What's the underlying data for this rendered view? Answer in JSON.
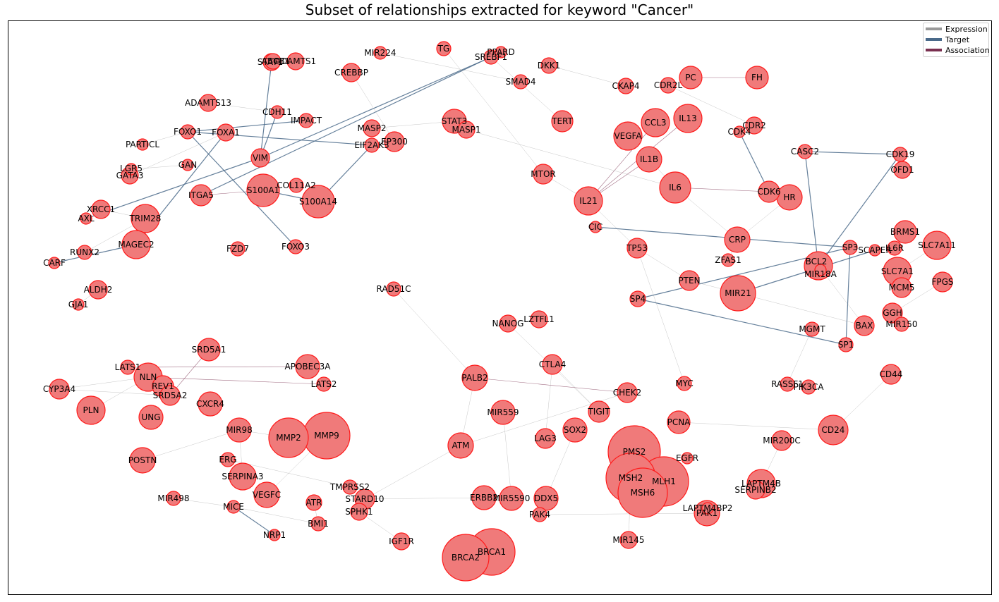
{
  "title": "Subset of relationships extracted for keyword \"Cancer\"",
  "legend": [
    {
      "label": "Expression",
      "color": "#999999"
    },
    {
      "label": "Target",
      "color": "#4a6a8a"
    },
    {
      "label": "Association",
      "color": "#7a3050"
    }
  ],
  "colors": {
    "node_fill": "#f07a7a",
    "node_stroke": "#ff1a1a"
  },
  "nodes": [
    {
      "id": "STAT1",
      "r": 12
    },
    {
      "id": "ABCB1",
      "r": 11
    },
    {
      "id": "ADAMTS1",
      "r": 12
    },
    {
      "id": "MIR224",
      "r": 9
    },
    {
      "id": "TG",
      "r": 10
    },
    {
      "id": "SREBF1",
      "r": 10
    },
    {
      "id": "PPARD",
      "r": 8
    },
    {
      "id": "DKK1",
      "r": 11
    },
    {
      "id": "SMAD4",
      "r": 10
    },
    {
      "id": "CREBBP",
      "r": 13
    },
    {
      "id": "CKAP4",
      "r": 11
    },
    {
      "id": "CDR2L",
      "r": 11
    },
    {
      "id": "PC",
      "r": 16
    },
    {
      "id": "FH",
      "r": 16
    },
    {
      "id": "ADAMTS13",
      "r": 12
    },
    {
      "id": "CDH11",
      "r": 9
    },
    {
      "id": "IMPACT",
      "r": 10
    },
    {
      "id": "STAT3",
      "r": 17
    },
    {
      "id": "MASP1",
      "r": 12
    },
    {
      "id": "TERT",
      "r": 15
    },
    {
      "id": "CCL3",
      "r": 20
    },
    {
      "id": "IL13",
      "r": 20
    },
    {
      "id": "CDR2",
      "r": 12
    },
    {
      "id": "FOXO1",
      "r": 10
    },
    {
      "id": "FOXA1",
      "r": 12
    },
    {
      "id": "MASP2",
      "r": 12
    },
    {
      "id": "EP300",
      "r": 14
    },
    {
      "id": "EIF2AK3",
      "r": 10
    },
    {
      "id": "VEGFA",
      "r": 20
    },
    {
      "id": "CDK4",
      "r": 8
    },
    {
      "id": "CASC2",
      "r": 10
    },
    {
      "id": "CDK19",
      "r": 10
    },
    {
      "id": "PARTICL",
      "r": 8
    },
    {
      "id": "GAN",
      "r": 8
    },
    {
      "id": "VIM",
      "r": 13
    },
    {
      "id": "IL1B",
      "r": 18
    },
    {
      "id": "OFD1",
      "r": 12
    },
    {
      "id": "LGR5",
      "r": 8
    },
    {
      "id": "GATA3",
      "r": 12
    },
    {
      "id": "MTOR",
      "r": 14
    },
    {
      "id": "COL11A2",
      "r": 10
    },
    {
      "id": "S100A1",
      "r": 23
    },
    {
      "id": "IL6",
      "r": 22
    },
    {
      "id": "CDK6",
      "r": 15
    },
    {
      "id": "HR",
      "r": 18
    },
    {
      "id": "ITGA5",
      "r": 15
    },
    {
      "id": "S100A14",
      "r": 23
    },
    {
      "id": "IL21",
      "r": 20
    },
    {
      "id": "XRCC1",
      "r": 13
    },
    {
      "id": "AXL",
      "r": 8
    },
    {
      "id": "TRIM28",
      "r": 20
    },
    {
      "id": "BRMS1",
      "r": 16
    },
    {
      "id": "CIC",
      "r": 8
    },
    {
      "id": "SLC7A11",
      "r": 20
    },
    {
      "id": "CRP",
      "r": 18
    },
    {
      "id": "MAGEC2",
      "r": 20
    },
    {
      "id": "FZD7",
      "r": 10
    },
    {
      "id": "FOXO3",
      "r": 10
    },
    {
      "id": "TP53",
      "r": 14
    },
    {
      "id": "SP3",
      "r": 10
    },
    {
      "id": "SCAPER",
      "r": 8
    },
    {
      "id": "IL6R",
      "r": 10
    },
    {
      "id": "RUNX2",
      "r": 10
    },
    {
      "id": "BCL2",
      "r": 20
    },
    {
      "id": "MIR18A",
      "r": 8
    },
    {
      "id": "CARF",
      "r": 8
    },
    {
      "id": "ZFAS1",
      "r": 9
    },
    {
      "id": "SLC7A1",
      "r": 20
    },
    {
      "id": "FPGS",
      "r": 14
    },
    {
      "id": "PTEN",
      "r": 14
    },
    {
      "id": "MCM5",
      "r": 14
    },
    {
      "id": "ALDH2",
      "r": 13
    },
    {
      "id": "RAD51C",
      "r": 10
    },
    {
      "id": "MIR21",
      "r": 25
    },
    {
      "id": "GJA1",
      "r": 8
    },
    {
      "id": "SP4",
      "r": 11
    },
    {
      "id": "GGH",
      "r": 14
    },
    {
      "id": "LZTFL1",
      "r": 12
    },
    {
      "id": "NANOG",
      "r": 12
    },
    {
      "id": "BAX",
      "r": 14
    },
    {
      "id": "MIR150",
      "r": 10
    },
    {
      "id": "MGMT",
      "r": 10
    },
    {
      "id": "SP1",
      "r": 10
    },
    {
      "id": "SRD5A1",
      "r": 16
    },
    {
      "id": "LATS1",
      "r": 10
    },
    {
      "id": "APOBEC3A",
      "r": 17
    },
    {
      "id": "CTLA4",
      "r": 14
    },
    {
      "id": "NLN",
      "r": 20
    },
    {
      "id": "PALB2",
      "r": 18
    },
    {
      "id": "REV1",
      "r": 15
    },
    {
      "id": "LATS2",
      "r": 10
    },
    {
      "id": "CD44",
      "r": 14
    },
    {
      "id": "CYP3A4",
      "r": 14
    },
    {
      "id": "SRD5A2",
      "r": 14
    },
    {
      "id": "MYC",
      "r": 10
    },
    {
      "id": "RASSF1",
      "r": 10
    },
    {
      "id": "PIK3CA",
      "r": 10
    },
    {
      "id": "CXCR4",
      "r": 17
    },
    {
      "id": "CHEK2",
      "r": 14
    },
    {
      "id": "PLN",
      "r": 20
    },
    {
      "id": "UNG",
      "r": 17
    },
    {
      "id": "MIR559",
      "r": 17
    },
    {
      "id": "TIGIT",
      "r": 15
    },
    {
      "id": "PCNA",
      "r": 16
    },
    {
      "id": "CD24",
      "r": 21
    },
    {
      "id": "MIR98",
      "r": 17
    },
    {
      "id": "MMP2",
      "r": 28
    },
    {
      "id": "MMP9",
      "r": 33
    },
    {
      "id": "SOX2",
      "r": 17
    },
    {
      "id": "LAG3",
      "r": 14
    },
    {
      "id": "MIR200C",
      "r": 14
    },
    {
      "id": "ATM",
      "r": 18
    },
    {
      "id": "PMS2",
      "r": 37
    },
    {
      "id": "POSTN",
      "r": 18
    },
    {
      "id": "ERG",
      "r": 10
    },
    {
      "id": "EGFR",
      "r": 8
    },
    {
      "id": "SERPINA3",
      "r": 19
    },
    {
      "id": "MLH1",
      "r": 35
    },
    {
      "id": "LAPTM4B",
      "r": 20
    },
    {
      "id": "MSH2",
      "r": 35
    },
    {
      "id": "SERPINB2",
      "r": 13
    },
    {
      "id": "TMPRSS2",
      "r": 10
    },
    {
      "id": "VEGFC",
      "r": 18
    },
    {
      "id": "MSH6",
      "r": 35
    },
    {
      "id": "ERBB2",
      "r": 17
    },
    {
      "id": "STARD10",
      "r": 14
    },
    {
      "id": "MIR5590",
      "r": 17
    },
    {
      "id": "DDX5",
      "r": 17
    },
    {
      "id": "MIR498",
      "r": 10
    },
    {
      "id": "ATR",
      "r": 11
    },
    {
      "id": "LAPTM4BP2",
      "r": 8
    },
    {
      "id": "PAK1",
      "r": 18
    },
    {
      "id": "MICE",
      "r": 9
    },
    {
      "id": "SPHK1",
      "r": 12
    },
    {
      "id": "PAK4",
      "r": 10
    },
    {
      "id": "BMI1",
      "r": 10
    },
    {
      "id": "NRP1",
      "r": 8
    },
    {
      "id": "MIR145",
      "r": 12
    },
    {
      "id": "IGF1R",
      "r": 12
    },
    {
      "id": "BRCA1",
      "r": 33
    },
    {
      "id": "BRCA2",
      "r": 33
    }
  ],
  "edges": [
    {
      "s": "S100A1",
      "t": "S100A14",
      "type": "Target"
    },
    {
      "s": "S100A14",
      "t": "EIF2AK3",
      "type": "Target"
    },
    {
      "s": "FOXO1",
      "t": "FOXO3",
      "type": "Target"
    },
    {
      "s": "FOXO1",
      "t": "EIF2AK3",
      "type": "Target"
    },
    {
      "s": "CDH11",
      "t": "VIM",
      "type": "Target"
    },
    {
      "s": "IMPACT",
      "t": "FOXO1",
      "type": "Target"
    },
    {
      "s": "VIM",
      "t": "AXL",
      "type": "Target"
    },
    {
      "s": "VIM",
      "t": "SREBF1",
      "type": "Target"
    },
    {
      "s": "ITGA5",
      "t": "PPARD",
      "type": "Target"
    },
    {
      "s": "MAGEC2",
      "t": "FOXA1",
      "type": "Target"
    },
    {
      "s": "MAGEC2",
      "t": "CARF",
      "type": "Target"
    },
    {
      "s": "STAT1",
      "t": "VIM",
      "type": "Target"
    },
    {
      "s": "CDK4",
      "t": "CDK6",
      "type": "Target"
    },
    {
      "s": "CASC2",
      "t": "CDK19",
      "type": "Target"
    },
    {
      "s": "CASC2",
      "t": "BCL2",
      "type": "Target"
    },
    {
      "s": "CDK19",
      "t": "BCL2",
      "type": "Target"
    },
    {
      "s": "CIC",
      "t": "SP3",
      "type": "Target"
    },
    {
      "s": "SP3",
      "t": "SP1",
      "type": "Target"
    },
    {
      "s": "SP4",
      "t": "SP3",
      "type": "Target"
    },
    {
      "s": "SP4",
      "t": "SP1",
      "type": "Target"
    },
    {
      "s": "MIR21",
      "t": "SCAPER",
      "type": "Target"
    },
    {
      "s": "MICE",
      "t": "NRP1",
      "type": "Target"
    },
    {
      "s": "PC",
      "t": "FH",
      "type": "Association"
    },
    {
      "s": "IL21",
      "t": "IL1B",
      "type": "Association"
    },
    {
      "s": "IL21",
      "t": "IL13",
      "type": "Association"
    },
    {
      "s": "IL21",
      "t": "CCL3",
      "type": "Association"
    },
    {
      "s": "IL6",
      "t": "CDK6",
      "type": "Association"
    },
    {
      "s": "ITGA5",
      "t": "S100A1",
      "type": "Association"
    },
    {
      "s": "PALB2",
      "t": "CHEK2",
      "type": "Association"
    },
    {
      "s": "NLN",
      "t": "LATS2",
      "type": "Association"
    },
    {
      "s": "SRD5A1",
      "t": "SRD5A2",
      "type": "Association"
    },
    {
      "s": "LATS1",
      "t": "APOBEC3A",
      "type": "Association"
    },
    {
      "s": "ADAMTS13",
      "t": "CDH11",
      "type": "Expression"
    },
    {
      "s": "CREBBP",
      "t": "EP300",
      "type": "Expression"
    },
    {
      "s": "MIR224",
      "t": "SMAD4",
      "type": "Expression"
    },
    {
      "s": "DKK1",
      "t": "CKAP4",
      "type": "Expression"
    },
    {
      "s": "CDR2L",
      "t": "CDR2",
      "type": "Expression"
    },
    {
      "s": "STAT3",
      "t": "MASP2",
      "type": "Expression"
    },
    {
      "s": "MASP1",
      "t": "IL6",
      "type": "Expression"
    },
    {
      "s": "TERT",
      "t": "SREBF1",
      "type": "Expression"
    },
    {
      "s": "MTOR",
      "t": "IL21",
      "type": "Expression"
    },
    {
      "s": "IL21",
      "t": "TP53",
      "type": "Expression"
    },
    {
      "s": "IL6",
      "t": "IL1B",
      "type": "Expression"
    },
    {
      "s": "CRP",
      "t": "HR",
      "type": "Expression"
    },
    {
      "s": "CRP",
      "t": "IL6",
      "type": "Expression"
    },
    {
      "s": "TP53",
      "t": "PTEN",
      "type": "Expression"
    },
    {
      "s": "TP53",
      "t": "MYC",
      "type": "Expression"
    },
    {
      "s": "PTEN",
      "t": "BAX",
      "type": "Expression"
    },
    {
      "s": "BCL2",
      "t": "BAX",
      "type": "Expression"
    },
    {
      "s": "MGMT",
      "t": "RASSF1",
      "type": "Expression"
    },
    {
      "s": "SLC7A11",
      "t": "SLC7A1",
      "type": "Expression"
    },
    {
      "s": "GGH",
      "t": "FPGS",
      "type": "Expression"
    },
    {
      "s": "MIR150",
      "t": "GGH",
      "type": "Expression"
    },
    {
      "s": "LZTFL1",
      "t": "NANOG",
      "type": "Expression"
    },
    {
      "s": "NANOG",
      "t": "TIGIT",
      "type": "Expression"
    },
    {
      "s": "CTLA4",
      "t": "LAG3",
      "type": "Expression"
    },
    {
      "s": "CTLA4",
      "t": "TIGIT",
      "type": "Expression"
    },
    {
      "s": "RAD51C",
      "t": "PALB2",
      "type": "Expression"
    },
    {
      "s": "PALB2",
      "t": "ATM",
      "type": "Expression"
    },
    {
      "s": "ATM",
      "t": "CHEK2",
      "type": "Expression"
    },
    {
      "s": "ATM",
      "t": "STARD10",
      "type": "Expression"
    },
    {
      "s": "PCNA",
      "t": "CD24",
      "type": "Expression"
    },
    {
      "s": "CD24",
      "t": "CD44",
      "type": "Expression"
    },
    {
      "s": "MIR200C",
      "t": "LAPTM4B",
      "type": "Expression"
    },
    {
      "s": "MSH2",
      "t": "MSH6",
      "type": "Expression"
    },
    {
      "s": "MSH2",
      "t": "MLH1",
      "type": "Expression"
    },
    {
      "s": "PMS2",
      "t": "MLH1",
      "type": "Expression"
    },
    {
      "s": "PAK4",
      "t": "PAK1",
      "type": "Expression"
    },
    {
      "s": "ERBB2",
      "t": "STARD10",
      "type": "Expression"
    },
    {
      "s": "MMP2",
      "t": "MIR98",
      "type": "Expression"
    },
    {
      "s": "MMP9",
      "t": "VEGFC",
      "type": "Expression"
    },
    {
      "s": "MMP2",
      "t": "MMP9",
      "type": "Expression"
    },
    {
      "s": "ERG",
      "t": "TMPRSS2",
      "type": "Expression"
    },
    {
      "s": "SERPINA3",
      "t": "MIR98",
      "type": "Expression"
    },
    {
      "s": "MIR498",
      "t": "MICE",
      "type": "Expression"
    },
    {
      "s": "MICE",
      "t": "BMI1",
      "type": "Expression"
    },
    {
      "s": "IGF1R",
      "t": "SPHK1",
      "type": "Expression"
    },
    {
      "s": "PLN",
      "t": "NLN",
      "type": "Expression"
    },
    {
      "s": "CYP3A4",
      "t": "SRD5A2",
      "type": "Expression"
    },
    {
      "s": "CYP3A4",
      "t": "NLN",
      "type": "Expression"
    },
    {
      "s": "POSTN",
      "t": "MIR98",
      "type": "Expression"
    },
    {
      "s": "TRIM28",
      "t": "XRCC1",
      "type": "Expression"
    },
    {
      "s": "LGR5",
      "t": "GAN",
      "type": "Expression"
    },
    {
      "s": "RUNX2",
      "t": "TRIM28",
      "type": "Expression"
    },
    {
      "s": "ALDH2",
      "t": "GJA1",
      "type": "Expression"
    },
    {
      "s": "PARTICL",
      "t": "FOXO1",
      "type": "Expression"
    },
    {
      "s": "MIR559",
      "t": "MIR5590",
      "type": "Expression"
    },
    {
      "s": "DDX5",
      "t": "SOX2",
      "type": "Expression"
    },
    {
      "s": "ZFAS1",
      "t": "CRP",
      "type": "Expression"
    },
    {
      "s": "TG",
      "t": "MTOR",
      "type": "Expression"
    },
    {
      "s": "MIR145",
      "t": "MSH2",
      "type": "Expression"
    },
    {
      "s": "EGFR",
      "t": "MLH1",
      "type": "Expression"
    },
    {
      "s": "BRCA1",
      "t": "BRCA2",
      "type": "Expression"
    },
    {
      "s": "ATR",
      "t": "BMI1",
      "type": "Expression"
    },
    {
      "s": "GATA3",
      "t": "FOXA1",
      "type": "Expression"
    }
  ]
}
